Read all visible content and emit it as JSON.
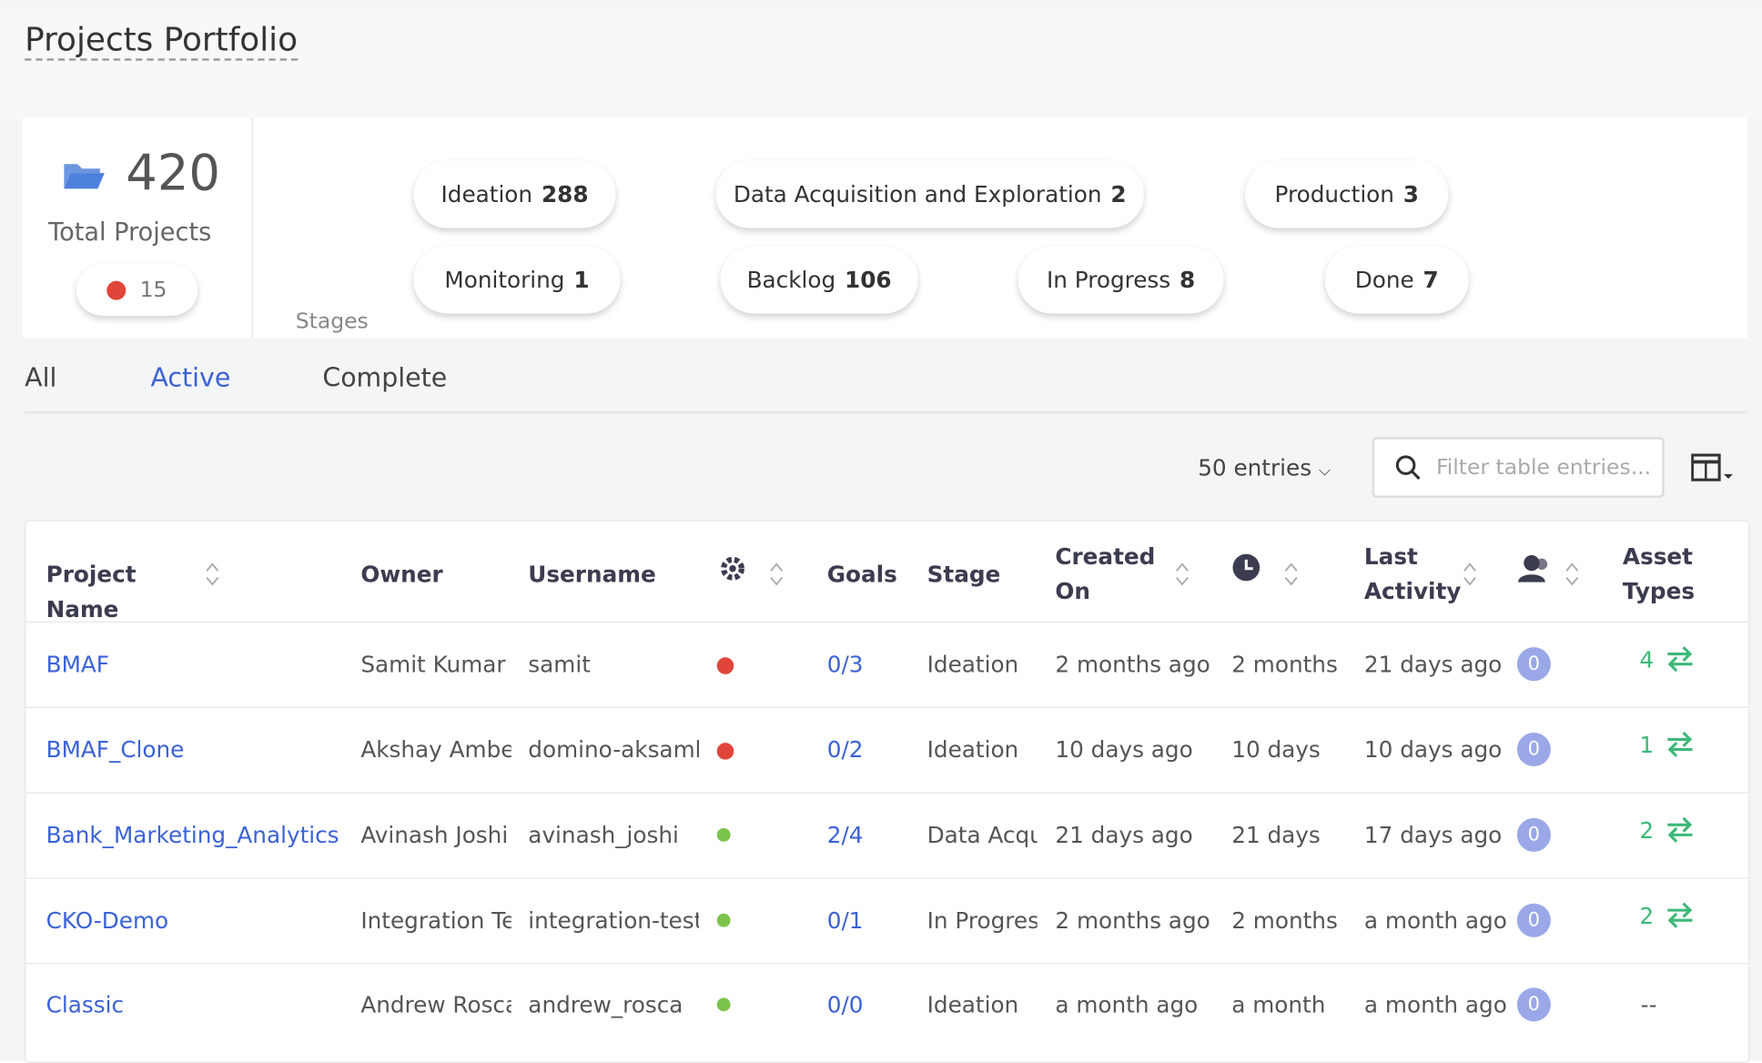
{
  "header": {
    "title": "Projects Portfolio"
  },
  "summary": {
    "total": 420,
    "total_label": "Total Projects",
    "flagged": 15,
    "stages_label": "Stages",
    "stages": [
      {
        "name": "Ideation",
        "count": 288
      },
      {
        "name": "Data Acquisition and Exploration",
        "count": 2
      },
      {
        "name": "Production",
        "count": 3
      },
      {
        "name": "Monitoring",
        "count": 1
      },
      {
        "name": "Backlog",
        "count": 106
      },
      {
        "name": "In Progress",
        "count": 8
      },
      {
        "name": "Done",
        "count": 7
      }
    ]
  },
  "tabs": {
    "items": [
      "All",
      "Active",
      "Complete"
    ],
    "active": 1
  },
  "toolbar": {
    "entries": "50 entries",
    "filter_placeholder": "Filter table entries..."
  },
  "table": {
    "columns": [
      "Project Name",
      "Owner",
      "Username",
      null,
      "Goals",
      "Stage",
      "Created On",
      null,
      "Last Activity",
      null,
      "Asset Types"
    ],
    "sortable": [
      true,
      false,
      false,
      true,
      false,
      false,
      true,
      true,
      true,
      true,
      false
    ],
    "rows": [
      [
        "BMAF",
        "Samit Kumar T",
        "samit",
        "red",
        "0/3",
        "Ideation",
        "2 months ago",
        "2 months",
        "21 days ago",
        0,
        4
      ],
      [
        "BMAF_Clone",
        "Akshay Ambek",
        "domino-aksamb",
        "red",
        "0/2",
        "Ideation",
        "10 days ago",
        "10 days",
        "10 days ago",
        0,
        1
      ],
      [
        "Bank_Marketing_Analytics",
        "Avinash Joshi",
        "avinash_joshi",
        "green",
        "2/4",
        "Data Acqu",
        "21 days ago",
        "21 days",
        "17 days ago",
        0,
        2
      ],
      [
        "CKO-Demo",
        "Integration Tes",
        "integration-test",
        "green",
        "0/1",
        "In Progres",
        "2 months ago",
        "2 months",
        "a month ago",
        0,
        2
      ],
      [
        "Classic",
        "Andrew Rosca",
        "andrew_rosca",
        "green",
        "0/0",
        "Ideation",
        "a month ago",
        "a month",
        "a month ago",
        0,
        "--"
      ]
    ]
  }
}
